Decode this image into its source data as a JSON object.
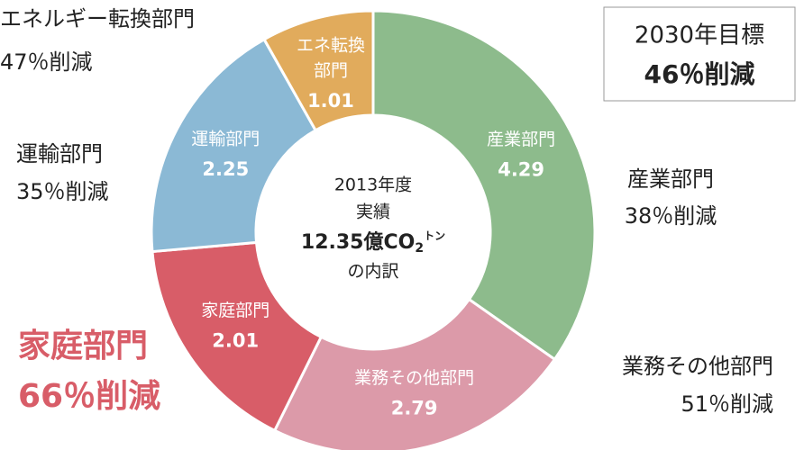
{
  "chart_data": {
    "type": "donut",
    "categories": [
      [
        "産業部門"
      ],
      [
        "業務その他部門"
      ],
      [
        "家庭部門"
      ],
      [
        "運輸部門"
      ],
      [
        "エネ転換",
        "部門"
      ]
    ],
    "values": [
      4.29,
      2.79,
      2.01,
      2.25,
      1.01
    ],
    "colors": [
      "#8dbb8c",
      "#dc9aa9",
      "#d85d68",
      "#8bb9d5",
      "#e1ab5c"
    ],
    "center_text": {
      "lines": [
        "2013年度",
        "実績"
      ],
      "total": "12.35億CO",
      "subscript": "2",
      "unit": "トン",
      "suffix": "の内訳"
    },
    "notes": [
      {
        "name": "産業部門",
        "reduction": "38％削減",
        "color": "#222222"
      },
      {
        "name": "業務その他部門",
        "reduction": "51％削減",
        "color": "#222222"
      },
      {
        "name": "家庭部門",
        "reduction": "66％削減",
        "color": "#d85d68"
      },
      {
        "name": "運輸部門",
        "reduction": "35％削減",
        "color": "#222222"
      },
      {
        "name": "エネルギー転換部門",
        "reduction": "47％削減",
        "color": "#222222"
      }
    ],
    "target": {
      "title": "2030年目標",
      "value": "46％削減"
    }
  }
}
